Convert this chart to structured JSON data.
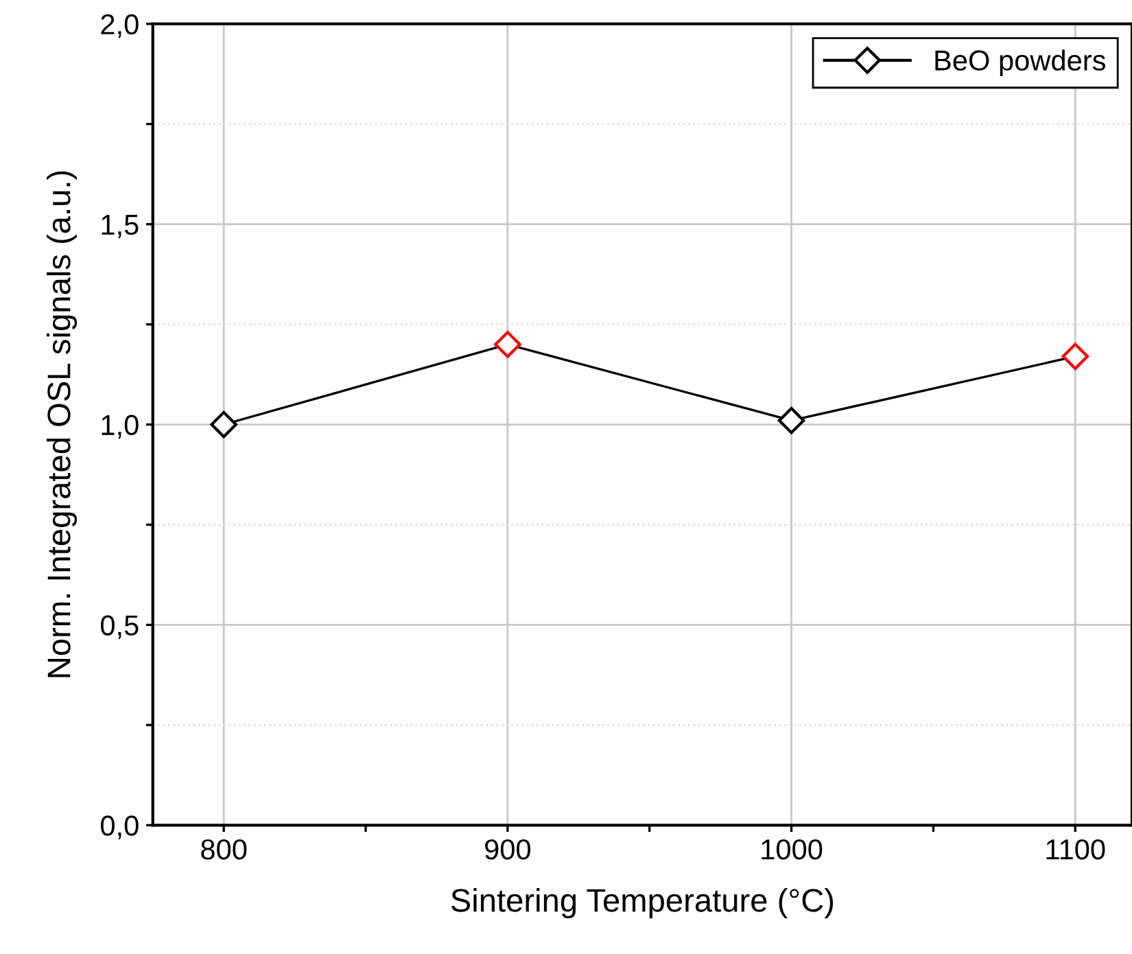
{
  "chart_data": {
    "type": "line",
    "xlabel": "Sintering Temperature (°C)",
    "ylabel": "Norm. Integrated OSL signals (a.u.)",
    "x": [
      800,
      900,
      1000,
      1100
    ],
    "series": [
      {
        "name": "BeO powders",
        "color": "#000000",
        "colors": [
          "#000000",
          "#ff0000",
          "#000000",
          "#ff0000"
        ],
        "values": [
          1.0,
          1.2,
          1.01,
          1.17
        ]
      }
    ],
    "xlim": [
      775,
      1120
    ],
    "ylim": [
      0,
      2.0
    ],
    "xticks": [
      800,
      {
        "value": 850,
        "label": null
      },
      900,
      {
        "value": 950,
        "label": null
      },
      1000,
      {
        "value": 1050,
        "label": null
      },
      1100
    ],
    "yticks": [
      {
        "value": 0,
        "label": "0,0"
      },
      {
        "value": 0.25,
        "label": null
      },
      {
        "value": 0.5,
        "label": "0,5"
      },
      {
        "value": 0.75,
        "label": null
      },
      {
        "value": 1.0,
        "label": "1,0"
      },
      {
        "value": 1.25,
        "label": null
      },
      {
        "value": 1.5,
        "label": "1,5"
      },
      {
        "value": 1.75,
        "label": null
      },
      {
        "value": 2.0,
        "label": "2,0"
      }
    ],
    "grid": true,
    "legend": "top right",
    "marker": "diamond",
    "line_style": "solid"
  }
}
